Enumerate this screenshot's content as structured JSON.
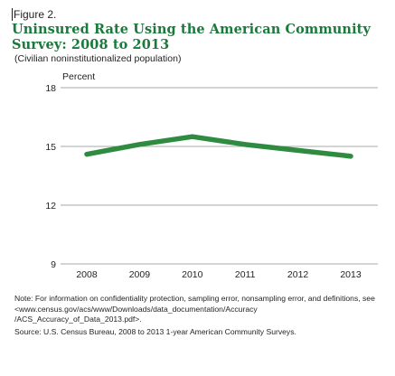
{
  "figure": {
    "label": "Figure 2.",
    "title": "Uninsured Rate Using the American Community Survey: 2008 to 2013",
    "subtitle": "(Civilian noninstitutionalized population)"
  },
  "chart_data": {
    "type": "line",
    "title": "Uninsured Rate Using the American Community Survey: 2008 to 2013",
    "subtitle": "(Civilian noninstitutionalized population)",
    "ylabel": "Percent",
    "xlabel": "",
    "x": [
      "2008",
      "2009",
      "2010",
      "2011",
      "2012",
      "2013"
    ],
    "series": [
      {
        "values": [
          14.6,
          15.1,
          15.5,
          15.1,
          14.8,
          14.5
        ],
        "color": "#2e8b3f"
      }
    ],
    "ylim": [
      9,
      18
    ],
    "yticks": [
      9,
      12,
      15,
      18
    ],
    "grid": true,
    "legend": "none"
  },
  "notes": {
    "note": "Note: For information on confidentiality protection, sampling error, nonsampling error, and definitions, see <www.census.gov/acs/www/Downloads/data_documentation/Accuracy /ACS_Accuracy_of_Data_2013.pdf>.",
    "source": "Source: U.S. Census Bureau, 2008 to 2013 1-year American Community Surveys."
  }
}
